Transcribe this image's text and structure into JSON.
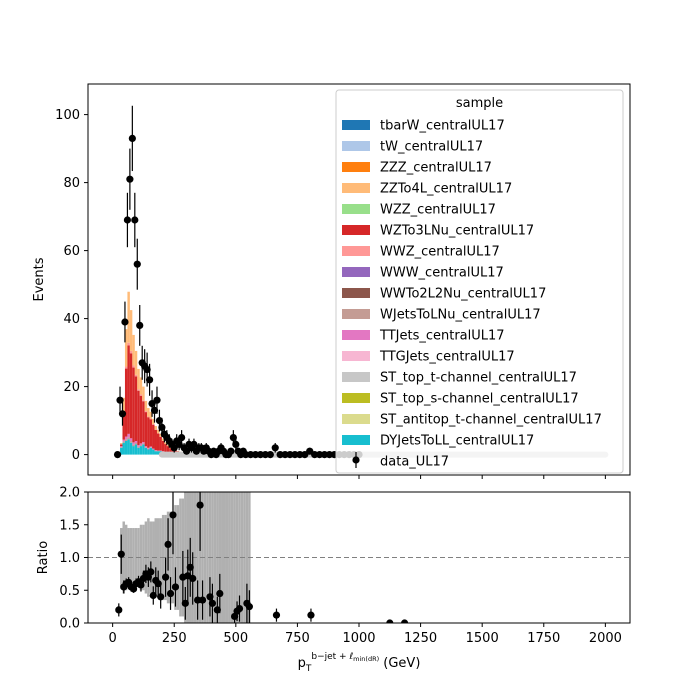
{
  "chart_data": [
    {
      "type": "histogram",
      "panel": "main",
      "xlabel": "",
      "ylabel": "Events",
      "xlim": [
        -100,
        2100
      ],
      "ylim": [
        -6,
        109
      ],
      "yticks": [
        0,
        20,
        40,
        60,
        80,
        100
      ],
      "legend": {
        "title": "sample",
        "placement": "top-right",
        "entries": [
          {
            "name": "tbarW_centralUL17",
            "color": "#1f77b4",
            "kind": "patch"
          },
          {
            "name": "tW_centralUL17",
            "color": "#aec7e8",
            "kind": "patch"
          },
          {
            "name": "ZZZ_centralUL17",
            "color": "#ff7f0e",
            "kind": "patch"
          },
          {
            "name": "ZZTo4L_centralUL17",
            "color": "#ffbb78",
            "kind": "patch"
          },
          {
            "name": "WZZ_centralUL17",
            "color": "#98df8a",
            "kind": "patch"
          },
          {
            "name": "WZTo3LNu_centralUL17",
            "color": "#d62728",
            "kind": "patch"
          },
          {
            "name": "WWZ_centralUL17",
            "color": "#ff9896",
            "kind": "patch"
          },
          {
            "name": "WWW_centralUL17",
            "color": "#9467bd",
            "kind": "patch"
          },
          {
            "name": "WWTo2L2Nu_centralUL17",
            "color": "#8c564b",
            "kind": "patch"
          },
          {
            "name": "WJetsToLNu_centralUL17",
            "color": "#c49c94",
            "kind": "patch"
          },
          {
            "name": "TTJets_centralUL17",
            "color": "#e377c2",
            "kind": "patch"
          },
          {
            "name": "TTGJets_centralUL17",
            "color": "#f7b6d2",
            "kind": "patch"
          },
          {
            "name": "ST_top_t-channel_centralUL17",
            "color": "#c7c7c7",
            "kind": "patch"
          },
          {
            "name": "ST_top_s-channel_centralUL17",
            "color": "#bcbd22",
            "kind": "patch"
          },
          {
            "name": "ST_antitop_t-channel_centralUL17",
            "color": "#dbdb8d",
            "kind": "patch"
          },
          {
            "name": "DYJetsToLL_centralUL17",
            "color": "#17becf",
            "kind": "patch"
          },
          {
            "name": "data_UL17",
            "color": "#000000",
            "kind": "errorbar"
          }
        ]
      },
      "mc_stack": {
        "bin_width": 10,
        "x_start": 30,
        "DYJetsToLL_centralUL17": [
          2.0,
          3.5,
          4.0,
          4.5,
          3.5,
          2.5,
          3.0,
          2.0,
          2.5,
          3.0,
          2.0,
          1.5,
          2.0,
          1.5,
          1.0,
          1.0,
          1.0,
          0.8,
          0.5,
          0.5,
          0.4,
          0.3,
          0.3,
          0.2,
          0.2,
          0.1
        ],
        "WJetsToLNu_centralUL17": [
          0.2,
          0.4,
          0.5,
          0.6,
          0.5,
          0.4,
          0.4,
          0.3,
          0.3,
          0.3,
          0.2,
          0.2,
          0.2,
          0.1,
          0.1,
          0.1,
          0.1,
          0.1,
          0,
          0,
          0,
          0,
          0,
          0,
          0,
          0
        ],
        "TTJets_centralUL17": [
          0.3,
          0.5,
          0.8,
          1.0,
          0.8,
          0.7,
          0.6,
          0.5,
          0.5,
          0.4,
          0.3,
          0.3,
          0.2,
          0.2,
          0.2,
          0.1,
          0.1,
          0.1,
          0.1,
          0,
          0,
          0,
          0,
          0,
          0,
          0
        ],
        "WZTo3LNu_centralUL17": [
          0.5,
          8.0,
          20.0,
          26.0,
          25.0,
          22.0,
          19.0,
          16.0,
          14.0,
          12.0,
          10.0,
          9.0,
          8.0,
          7.0,
          6.0,
          5.0,
          4.0,
          3.0,
          2.5,
          2.0,
          1.5,
          1.0,
          1.0,
          0.8,
          0.6,
          0.4
        ],
        "WWZ_centralUL17": [
          0.1,
          0.3,
          0.6,
          0.8,
          0.7,
          0.6,
          0.5,
          0.4,
          0.4,
          0.3,
          0.3,
          0.2,
          0.2,
          0.2,
          0.1,
          0.1,
          0.1,
          0.1,
          0,
          0,
          0,
          0,
          0,
          0,
          0,
          0
        ],
        "ZZTo4L_centralUL17": [
          0.3,
          4.0,
          11.0,
          15.0,
          12.0,
          9.0,
          7.0,
          6.0,
          5.0,
          4.0,
          3.0,
          2.5,
          2.0,
          1.5,
          1.0,
          1.0,
          0.8,
          0.6,
          0.5,
          0.4,
          0.3,
          0.2,
          0.2,
          0.1,
          0.1,
          0.1
        ]
      },
      "data_UL17": {
        "x": [
          20,
          30,
          40,
          50,
          60,
          70,
          80,
          90,
          100,
          110,
          120,
          130,
          140,
          150,
          160,
          170,
          180,
          190,
          200,
          210,
          220,
          230,
          240,
          250,
          260,
          270,
          280,
          290,
          300,
          310,
          320,
          330,
          340,
          350,
          360,
          370,
          380,
          390,
          400,
          410,
          420,
          430,
          440,
          450,
          460,
          470,
          480,
          490,
          500,
          510,
          520,
          530,
          540,
          560,
          580,
          600,
          620,
          640,
          660,
          680,
          700,
          720,
          740,
          760,
          780,
          800,
          820,
          840,
          860,
          880,
          900,
          920,
          940,
          960,
          980,
          1000
        ],
        "y": [
          0,
          16,
          12,
          39,
          69,
          81,
          93,
          69,
          56,
          38,
          27,
          26,
          25,
          22,
          15,
          13,
          16,
          10,
          8,
          6,
          5,
          4,
          3,
          2,
          4,
          3,
          5,
          2,
          1,
          3,
          2,
          3,
          1,
          2,
          2,
          1,
          2,
          1,
          0,
          1,
          0,
          1,
          2,
          1,
          0,
          0,
          1,
          5,
          3,
          1,
          0,
          1,
          0,
          0,
          0,
          0,
          0,
          0,
          2,
          0,
          0,
          0,
          0,
          0,
          0,
          1,
          0,
          0,
          0,
          0,
          0,
          0,
          0,
          0,
          0,
          0
        ],
        "yerr": [
          0,
          4,
          3.5,
          6,
          8,
          9,
          9.6,
          8,
          7.5,
          6,
          5,
          5,
          5,
          4.7,
          3.9,
          3.6,
          4,
          3.2,
          2.8,
          2.4,
          2.2,
          2,
          1.7,
          1.4,
          2,
          1.7,
          2.2,
          1.4,
          1,
          1.7,
          1.4,
          1.7,
          1,
          1.4,
          1.4,
          1,
          1.4,
          1,
          0,
          1,
          0,
          1,
          1.4,
          1,
          0,
          0,
          1,
          2.2,
          1.7,
          1,
          0,
          1,
          0,
          0,
          0,
          0,
          0,
          0,
          1.4,
          0,
          0,
          0,
          0,
          0,
          0,
          1,
          0,
          0,
          0,
          0,
          0,
          0,
          0,
          0,
          0,
          0
        ]
      },
      "flat_tail": {
        "series": "ST_top_t-channel_centralUL17",
        "x_from": 200,
        "x_to": 2000,
        "y": 0
      }
    },
    {
      "type": "scatter",
      "panel": "ratio",
      "xlabel": "p_T^{b-jet + ℓ_min(dR)} (GeV)",
      "ylabel": "Ratio",
      "xlim": [
        -100,
        2100
      ],
      "ylim": [
        0,
        2
      ],
      "xticks": [
        0,
        250,
        500,
        750,
        1000,
        1250,
        1500,
        1750,
        2000
      ],
      "yticks": [
        0.0,
        0.5,
        1.0,
        1.5,
        2.0
      ],
      "reference_line": 1.0,
      "points": {
        "x": [
          25,
          35,
          45,
          55,
          65,
          75,
          85,
          95,
          105,
          115,
          125,
          135,
          145,
          155,
          165,
          175,
          185,
          195,
          215,
          225,
          235,
          245,
          255,
          285,
          295,
          305,
          315,
          325,
          345,
          355,
          365,
          395,
          405,
          425,
          435,
          495,
          505,
          515,
          545,
          555,
          665,
          805,
          1125,
          1185
        ],
        "y": [
          0.2,
          1.05,
          0.55,
          0.6,
          0.62,
          0.55,
          0.52,
          0.6,
          0.63,
          0.58,
          0.68,
          0.75,
          0.7,
          0.78,
          0.42,
          0.65,
          0.6,
          0.4,
          0.7,
          1.2,
          0.45,
          1.65,
          0.55,
          0.7,
          0.3,
          0.72,
          0.85,
          0.68,
          0.35,
          1.8,
          0.35,
          0.4,
          0.3,
          0.2,
          0.45,
          0.1,
          0.18,
          0.22,
          0.3,
          0.25,
          0.12,
          0.12,
          0,
          0
        ],
        "yerr": [
          0.1,
          0.3,
          0.1,
          0.08,
          0.08,
          0.07,
          0.06,
          0.08,
          0.09,
          0.1,
          0.12,
          0.14,
          0.15,
          0.16,
          0.14,
          0.2,
          0.2,
          0.18,
          0.3,
          0.4,
          0.25,
          0.6,
          0.3,
          0.4,
          0.25,
          0.4,
          0.45,
          0.4,
          0.3,
          0.7,
          0.3,
          0.3,
          0.3,
          0.2,
          0.3,
          0.1,
          0.15,
          0.2,
          0.3,
          0.25,
          0.1,
          0.1,
          0,
          0
        ]
      },
      "uncertainty_band": {
        "color": "#b0b0b0",
        "x_start": 30,
        "bin_width": 10,
        "half_width": [
          0.45,
          0.55,
          0.5,
          0.45,
          0.45,
          0.45,
          0.45,
          0.45,
          0.5,
          0.5,
          0.55,
          0.6,
          0.55,
          0.55,
          0.6,
          0.6,
          0.6,
          0.65,
          0.65,
          0.7,
          0.7,
          0.7,
          0.8,
          0.8,
          0.9,
          0.9,
          1.0,
          1.0,
          1.0,
          1.0,
          1.0,
          1.0,
          1.0,
          1.0,
          1.0,
          1.0,
          1.0,
          1.0,
          1.0,
          1.0,
          1.0,
          1.0,
          1.0,
          1.0,
          1.0,
          1.0,
          1.0,
          1.0,
          1.0,
          1.0,
          1.0,
          1.0,
          1.0
        ]
      }
    }
  ]
}
